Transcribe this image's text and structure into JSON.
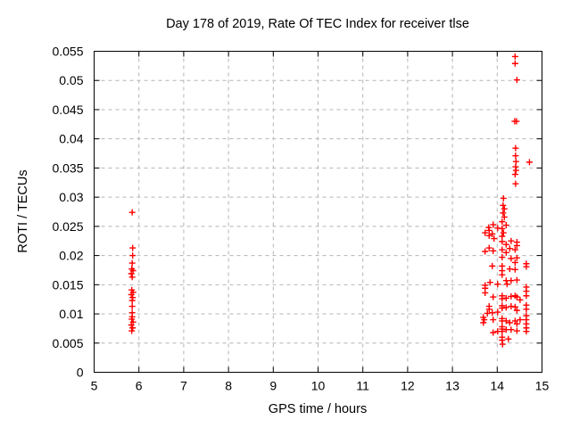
{
  "figure": {
    "title": "Day 178 of 2019, Rate Of TEC Index for receiver tlse",
    "xlabel": "GPS time / hours",
    "ylabel": "ROTI / TECUs"
  },
  "colors": {
    "marker": "#ff0000",
    "grid": "#b4b4b4",
    "frame": "#000000",
    "background": "#ffffff",
    "text": "#000000"
  },
  "chart_data": {
    "type": "scatter",
    "title": "Day 178 of 2019, Rate Of TEC Index for receiver tlse",
    "xlabel": "GPS time / hours",
    "ylabel": "ROTI / TECUs",
    "xlim": [
      5,
      15
    ],
    "ylim": [
      0,
      0.055
    ],
    "grid": true,
    "legend": false,
    "marker": "plus",
    "x_ticks": [
      {
        "v": 5,
        "label": "5"
      },
      {
        "v": 6,
        "label": "6"
      },
      {
        "v": 7,
        "label": "7"
      },
      {
        "v": 8,
        "label": "8"
      },
      {
        "v": 9,
        "label": "9"
      },
      {
        "v": 10,
        "label": "10"
      },
      {
        "v": 11,
        "label": "11"
      },
      {
        "v": 12,
        "label": "12"
      },
      {
        "v": 13,
        "label": "13"
      },
      {
        "v": 14,
        "label": "14"
      },
      {
        "v": 15,
        "label": "15"
      }
    ],
    "y_ticks": [
      {
        "v": 0,
        "label": "0"
      },
      {
        "v": 0.005,
        "label": "0.005"
      },
      {
        "v": 0.01,
        "label": "0.01"
      },
      {
        "v": 0.015,
        "label": "0.015"
      },
      {
        "v": 0.02,
        "label": "0.02"
      },
      {
        "v": 0.025,
        "label": "0.025"
      },
      {
        "v": 0.03,
        "label": "0.03"
      },
      {
        "v": 0.035,
        "label": "0.035"
      },
      {
        "v": 0.04,
        "label": "0.04"
      },
      {
        "v": 0.045,
        "label": "0.045"
      },
      {
        "v": 0.05,
        "label": "0.05"
      },
      {
        "v": 0.055,
        "label": "0.055"
      }
    ],
    "series": [
      {
        "name": "ROTI",
        "color": "#ff0000",
        "points": [
          [
            5.85,
            0.0274
          ],
          [
            5.86,
            0.0213
          ],
          [
            5.86,
            0.02
          ],
          [
            5.85,
            0.0187
          ],
          [
            5.84,
            0.0177
          ],
          [
            5.87,
            0.0174
          ],
          [
            5.83,
            0.0169
          ],
          [
            5.85,
            0.0163
          ],
          [
            5.84,
            0.0141
          ],
          [
            5.87,
            0.0137
          ],
          [
            5.83,
            0.0133
          ],
          [
            5.86,
            0.0128
          ],
          [
            5.85,
            0.0123
          ],
          [
            5.85,
            0.0113
          ],
          [
            5.85,
            0.0102
          ],
          [
            5.85,
            0.0095
          ],
          [
            5.84,
            0.0091
          ],
          [
            5.87,
            0.0086
          ],
          [
            5.83,
            0.0081
          ],
          [
            5.86,
            0.0076
          ],
          [
            5.84,
            0.0071
          ],
          [
            14.4,
            0.0541
          ],
          [
            14.4,
            0.0529
          ],
          [
            14.44,
            0.0501
          ],
          [
            14.39,
            0.043
          ],
          [
            14.43,
            0.043
          ],
          [
            14.41,
            0.0384
          ],
          [
            14.41,
            0.0371
          ],
          [
            14.42,
            0.0361
          ],
          [
            14.72,
            0.036
          ],
          [
            14.41,
            0.0352
          ],
          [
            14.42,
            0.0346
          ],
          [
            14.4,
            0.0339
          ],
          [
            14.41,
            0.0323
          ],
          [
            14.14,
            0.0298
          ],
          [
            14.13,
            0.0286
          ],
          [
            14.16,
            0.028
          ],
          [
            14.13,
            0.0273
          ],
          [
            14.16,
            0.0266
          ],
          [
            14.11,
            0.0258
          ],
          [
            14.2,
            0.0252
          ],
          [
            14.11,
            0.0246
          ],
          [
            14.14,
            0.0239
          ],
          [
            14.11,
            0.0233
          ],
          [
            13.91,
            0.0253
          ],
          [
            13.81,
            0.0248
          ],
          [
            14.01,
            0.0247
          ],
          [
            13.82,
            0.0243
          ],
          [
            13.73,
            0.0239
          ],
          [
            13.89,
            0.0237
          ],
          [
            13.82,
            0.0234
          ],
          [
            13.93,
            0.0229
          ],
          [
            14.11,
            0.0224
          ],
          [
            14.31,
            0.0225
          ],
          [
            14.44,
            0.0223
          ],
          [
            14.2,
            0.0219
          ],
          [
            14.44,
            0.0217
          ],
          [
            13.82,
            0.0213
          ],
          [
            13.91,
            0.0208
          ],
          [
            13.73,
            0.0207
          ],
          [
            14.11,
            0.021
          ],
          [
            14.28,
            0.0212
          ],
          [
            14.4,
            0.021
          ],
          [
            14.2,
            0.0205
          ],
          [
            14.11,
            0.0197
          ],
          [
            14.31,
            0.0195
          ],
          [
            14.44,
            0.0196
          ],
          [
            14.4,
            0.0188
          ],
          [
            13.89,
            0.0182
          ],
          [
            14.65,
            0.0186
          ],
          [
            14.65,
            0.0181
          ],
          [
            14.11,
            0.0182
          ],
          [
            14.11,
            0.0174
          ],
          [
            14.28,
            0.0177
          ],
          [
            14.4,
            0.0176
          ],
          [
            14.11,
            0.0167
          ],
          [
            14.2,
            0.0157
          ],
          [
            14.22,
            0.0151
          ],
          [
            14.31,
            0.0157
          ],
          [
            14.44,
            0.0158
          ],
          [
            14.01,
            0.0151
          ],
          [
            13.84,
            0.0154
          ],
          [
            13.73,
            0.0149
          ],
          [
            13.73,
            0.0144
          ],
          [
            14.65,
            0.0146
          ],
          [
            14.65,
            0.0139
          ],
          [
            14.65,
            0.0131
          ],
          [
            13.73,
            0.0136
          ],
          [
            13.91,
            0.0129
          ],
          [
            14.11,
            0.0131
          ],
          [
            14.11,
            0.0126
          ],
          [
            14.2,
            0.0127
          ],
          [
            14.31,
            0.013
          ],
          [
            14.4,
            0.0131
          ],
          [
            14.44,
            0.0129
          ],
          [
            14.51,
            0.0124
          ],
          [
            13.82,
            0.0113
          ],
          [
            13.82,
            0.0108
          ],
          [
            14.11,
            0.0114
          ],
          [
            14.11,
            0.011
          ],
          [
            14.2,
            0.0111
          ],
          [
            14.31,
            0.0113
          ],
          [
            14.4,
            0.0112
          ],
          [
            14.44,
            0.0106
          ],
          [
            14.01,
            0.0103
          ],
          [
            14.65,
            0.0115
          ],
          [
            14.65,
            0.0108
          ],
          [
            13.69,
            0.0094
          ],
          [
            13.71,
            0.009
          ],
          [
            13.69,
            0.0085
          ],
          [
            13.78,
            0.0101
          ],
          [
            13.89,
            0.0102
          ],
          [
            13.91,
            0.009
          ],
          [
            14.11,
            0.0092
          ],
          [
            14.11,
            0.0088
          ],
          [
            14.2,
            0.0088
          ],
          [
            14.28,
            0.0085
          ],
          [
            14.4,
            0.0088
          ],
          [
            14.44,
            0.0083
          ],
          [
            14.51,
            0.009
          ],
          [
            14.65,
            0.0097
          ],
          [
            14.65,
            0.009
          ],
          [
            14.65,
            0.0083
          ],
          [
            14.65,
            0.0076
          ],
          [
            14.11,
            0.0078
          ],
          [
            14.11,
            0.0074
          ],
          [
            14.11,
            0.007
          ],
          [
            14.2,
            0.0073
          ],
          [
            14.31,
            0.0073
          ],
          [
            14.44,
            0.0071
          ],
          [
            13.91,
            0.0068
          ],
          [
            14.01,
            0.007
          ],
          [
            14.65,
            0.007
          ],
          [
            14.11,
            0.006
          ],
          [
            14.11,
            0.0055
          ],
          [
            14.12,
            0.0048
          ],
          [
            14.25,
            0.0057
          ]
        ]
      }
    ]
  }
}
